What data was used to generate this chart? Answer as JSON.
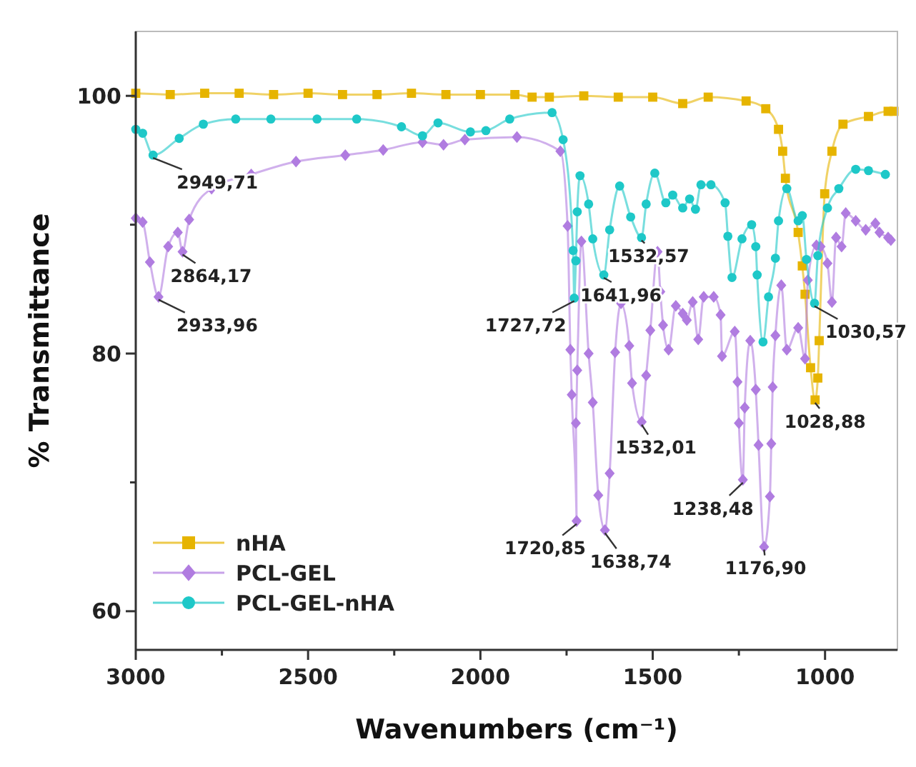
{
  "chart_data": {
    "type": "line",
    "xlabel": "Wavenumbers (cm⁻¹)",
    "ylabel": "% Transmittance",
    "xlim": [
      3000,
      790
    ],
    "ylim": [
      57,
      105
    ],
    "xticks": [
      3000,
      {
        "value": 2750,
        "label": null
      },
      2500,
      {
        "value": 2250,
        "label": null
      },
      2000,
      {
        "value": 1750,
        "label": null
      },
      1500,
      {
        "value": 1250,
        "label": null
      },
      1000
    ],
    "yticks": [
      60,
      {
        "value": 70,
        "label": null
      },
      80,
      {
        "value": 90,
        "label": null
      },
      100
    ],
    "grid": false,
    "legend": "bottom left",
    "series": [
      {
        "name": "nHA",
        "color": "#e6b400",
        "marker": "square",
        "x": [
          3000,
          2900,
          2800,
          2700,
          2600,
          2500,
          2400,
          2300,
          2200,
          2100,
          2000,
          1900,
          1850,
          1800,
          1700,
          1600,
          1500,
          1413,
          1339,
          1229,
          1172,
          1135,
          1123,
          1115,
          1078,
          1066,
          1058,
          1042,
          1028.88,
          1021,
          1017,
          1001,
          980,
          948,
          874,
          817,
          800
        ],
        "values": [
          100.2,
          100.1,
          100.2,
          100.2,
          100.1,
          100.2,
          100.1,
          100.1,
          100.2,
          100.1,
          100.1,
          100.1,
          99.9,
          99.9,
          100.0,
          99.9,
          99.9,
          99.4,
          99.9,
          99.6,
          99.0,
          97.4,
          95.7,
          93.6,
          89.4,
          86.8,
          84.6,
          78.9,
          76.4,
          78.1,
          81.0,
          92.4,
          95.7,
          97.8,
          98.4,
          98.8,
          98.8
        ]
      },
      {
        "name": "PCL-GEL",
        "color": "#b07ce0",
        "marker": "diamond",
        "x": [
          3000,
          2980,
          2959,
          2933.96,
          2906,
          2878,
          2864.17,
          2845,
          2780,
          2665,
          2535,
          2392,
          2282,
          2168,
          2107,
          2045,
          1894,
          1768,
          1747,
          1739,
          1735,
          1720.85,
          1723,
          1719,
          1707,
          1686,
          1674,
          1658,
          1638.74,
          1625,
          1609,
          1592,
          1568,
          1560,
          1532.01,
          1519,
          1507,
          1486,
          1478,
          1470,
          1454,
          1433,
          1413,
          1401,
          1384,
          1368,
          1352,
          1323,
          1303,
          1299,
          1262,
          1254,
          1250,
          1238.48,
          1233,
          1217,
          1201,
          1193,
          1176.9,
          1160,
          1156,
          1152,
          1144,
          1127,
          1111,
          1078,
          1058,
          1050,
          1025,
          1013,
          993,
          980,
          968,
          952,
          940,
          911,
          882,
          854,
          842,
          817,
          809
        ],
        "values": [
          90.5,
          90.2,
          87.1,
          84.4,
          88.3,
          89.4,
          87.9,
          90.4,
          92.8,
          93.9,
          94.9,
          95.4,
          95.8,
          96.4,
          96.2,
          96.6,
          96.8,
          95.7,
          89.9,
          80.3,
          76.8,
          67.0,
          74.6,
          78.7,
          88.7,
          80.0,
          76.2,
          69.0,
          66.3,
          70.7,
          80.1,
          83.9,
          80.6,
          77.7,
          74.7,
          78.3,
          81.8,
          87.9,
          84.8,
          82.2,
          80.3,
          83.7,
          83.1,
          82.6,
          84.0,
          81.1,
          84.4,
          84.4,
          83.0,
          79.8,
          81.7,
          77.8,
          74.6,
          70.2,
          75.8,
          81.0,
          77.2,
          72.9,
          65.0,
          68.9,
          73.0,
          77.4,
          81.4,
          85.3,
          80.3,
          82.0,
          79.6,
          85.7,
          88.4,
          88.3,
          87.0,
          84.0,
          89.0,
          88.3,
          90.9,
          90.3,
          89.6,
          90.1,
          89.4,
          89.0,
          88.8
        ]
      },
      {
        "name": "PCL-GEL-nHA",
        "color": "#1ec8c8",
        "marker": "circle",
        "x": [
          3000,
          2980,
          2949.71,
          2874,
          2804,
          2710,
          2608,
          2474,
          2359,
          2229,
          2168,
          2123,
          2029,
          1984,
          1915,
          1792,
          1760,
          1731,
          1727.72,
          1723,
          1719,
          1711,
          1686,
          1674,
          1641.96,
          1625,
          1596,
          1564,
          1532.57,
          1519,
          1494,
          1462,
          1442,
          1413,
          1393,
          1376,
          1360,
          1331,
          1290,
          1282,
          1270,
          1241,
          1213,
          1201,
          1197,
          1180,
          1164,
          1144,
          1135,
          1111,
          1078,
          1066,
          1054,
          1030.57,
          1021,
          993,
          960,
          911,
          874,
          825
        ],
        "values": [
          97.4,
          97.1,
          95.4,
          96.7,
          97.8,
          98.2,
          98.2,
          98.2,
          98.2,
          97.6,
          96.9,
          97.9,
          97.2,
          97.3,
          98.2,
          98.7,
          96.6,
          88.0,
          84.3,
          87.2,
          91.0,
          93.8,
          91.6,
          88.9,
          86.1,
          89.6,
          93.0,
          90.6,
          89.0,
          91.6,
          94.0,
          91.7,
          92.3,
          91.3,
          92.0,
          91.2,
          93.1,
          93.1,
          91.7,
          89.1,
          85.9,
          88.9,
          90.0,
          88.3,
          86.1,
          80.9,
          84.4,
          87.4,
          90.3,
          92.8,
          90.3,
          90.7,
          87.3,
          83.9,
          87.6,
          91.3,
          92.8,
          94.3,
          94.2,
          93.9
        ]
      }
    ],
    "annotations": [
      {
        "text": "2949,71",
        "x": 2949.71,
        "y": 95.4
      },
      {
        "text": "2933,96",
        "x": 2933.96,
        "y": 84.4
      },
      {
        "text": "2864,17",
        "x": 2864.17,
        "y": 87.9
      },
      {
        "text": "1727,72",
        "x": 1727.72,
        "y": 84.3
      },
      {
        "text": "1641,96",
        "x": 1641.96,
        "y": 86.1
      },
      {
        "text": "1532,57",
        "x": 1532.57,
        "y": 89.0
      },
      {
        "text": "1720,85",
        "x": 1720.85,
        "y": 67.0
      },
      {
        "text": "1638,74",
        "x": 1638.74,
        "y": 66.3
      },
      {
        "text": "1532,01",
        "x": 1532.01,
        "y": 74.7
      },
      {
        "text": "1238,48",
        "x": 1238.48,
        "y": 70.2
      },
      {
        "text": "1176,90",
        "x": 1176.9,
        "y": 65.0
      },
      {
        "text": "1030,57",
        "x": 1030.57,
        "y": 83.9
      },
      {
        "text": "1028,88",
        "x": 1028.88,
        "y": 76.4
      }
    ]
  }
}
